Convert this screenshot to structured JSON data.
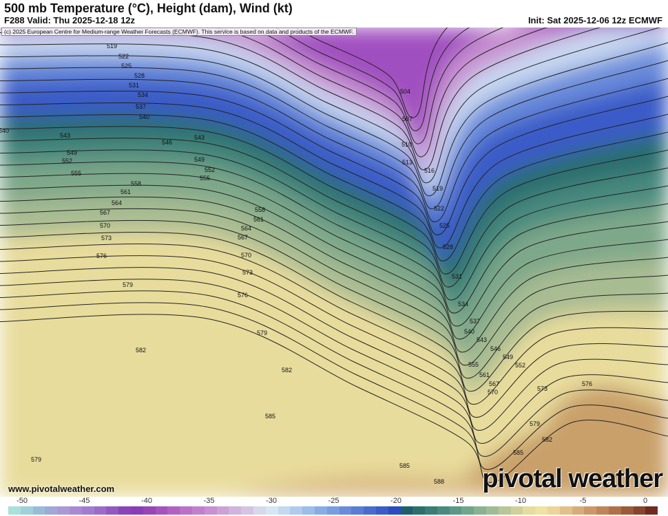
{
  "header": {
    "title": "500 mb Temperature (°C), Height (dam), Wind (kt)",
    "valid": "F288 Valid: Thu 2025-12-18 12z",
    "init": "Init: Sat 2025-12-06 12z ECMWF"
  },
  "copyright": "(c) 2025 European Centre for Medium-range Weather Forecasts (ECMWF). This service is based on data and products of the ECMWF.",
  "website": "www.pivotalweather.com",
  "logo": "pivotal weather",
  "height_labels": [
    "519",
    "522",
    "525",
    "528",
    "531",
    "534",
    "537",
    "540",
    "540",
    "543",
    "546",
    "543",
    "549",
    "552",
    "555",
    "549",
    "552",
    "555",
    "558",
    "561",
    "564",
    "567",
    "570",
    "573",
    "576",
    "579",
    "558",
    "561",
    "564",
    "567",
    "570",
    "573",
    "576",
    "579",
    "582",
    "582",
    "585",
    "579",
    "504",
    "507",
    "510",
    "513",
    "516",
    "519",
    "522",
    "525",
    "528",
    "531",
    "534",
    "537",
    "540",
    "543",
    "546",
    "549",
    "552",
    "555",
    "561",
    "567",
    "570",
    "573",
    "576",
    "579",
    "582",
    "585",
    "585",
    "588"
  ],
  "colorbar": {
    "ticks": [
      "-50",
      "-45",
      "-40",
      "-35",
      "-30",
      "-25",
      "-20",
      "-15",
      "-10",
      "-5",
      "0"
    ],
    "colors": [
      "#a8e0dc",
      "#9fd0dc",
      "#98bcd8",
      "#a0a8d8",
      "#a89ad6",
      "#a88ad4",
      "#a47ccf",
      "#9c6cc8",
      "#9458c0",
      "#8a44b8",
      "#8c3cb4",
      "#9a44b8",
      "#a850bc",
      "#b460c2",
      "#bc70c8",
      "#c280cc",
      "#c890d0",
      "#cca2d6",
      "#d0b4dc",
      "#d4c4e2",
      "#d8d8ec",
      "#d6e6f2",
      "#c4d8f0",
      "#b0caee",
      "#9cbcea",
      "#88ace6",
      "#7a9ce0",
      "#6a8cda",
      "#5a7cd4",
      "#4a6cce",
      "#3a5cc8",
      "#2a4cc0",
      "#1f5f6a",
      "#2b6e6e",
      "#3a7c76",
      "#4a8a7e",
      "#5c9886",
      "#70a68a",
      "#88b290",
      "#a0bc94",
      "#b8c698",
      "#d0d09c",
      "#e6dc9e",
      "#f0e2a0",
      "#ecd49a",
      "#e2c08a",
      "#d8ac7a",
      "#cc9868",
      "#c08458",
      "#b07048",
      "#9c5a3a",
      "#88442c",
      "#702a20"
    ]
  }
}
